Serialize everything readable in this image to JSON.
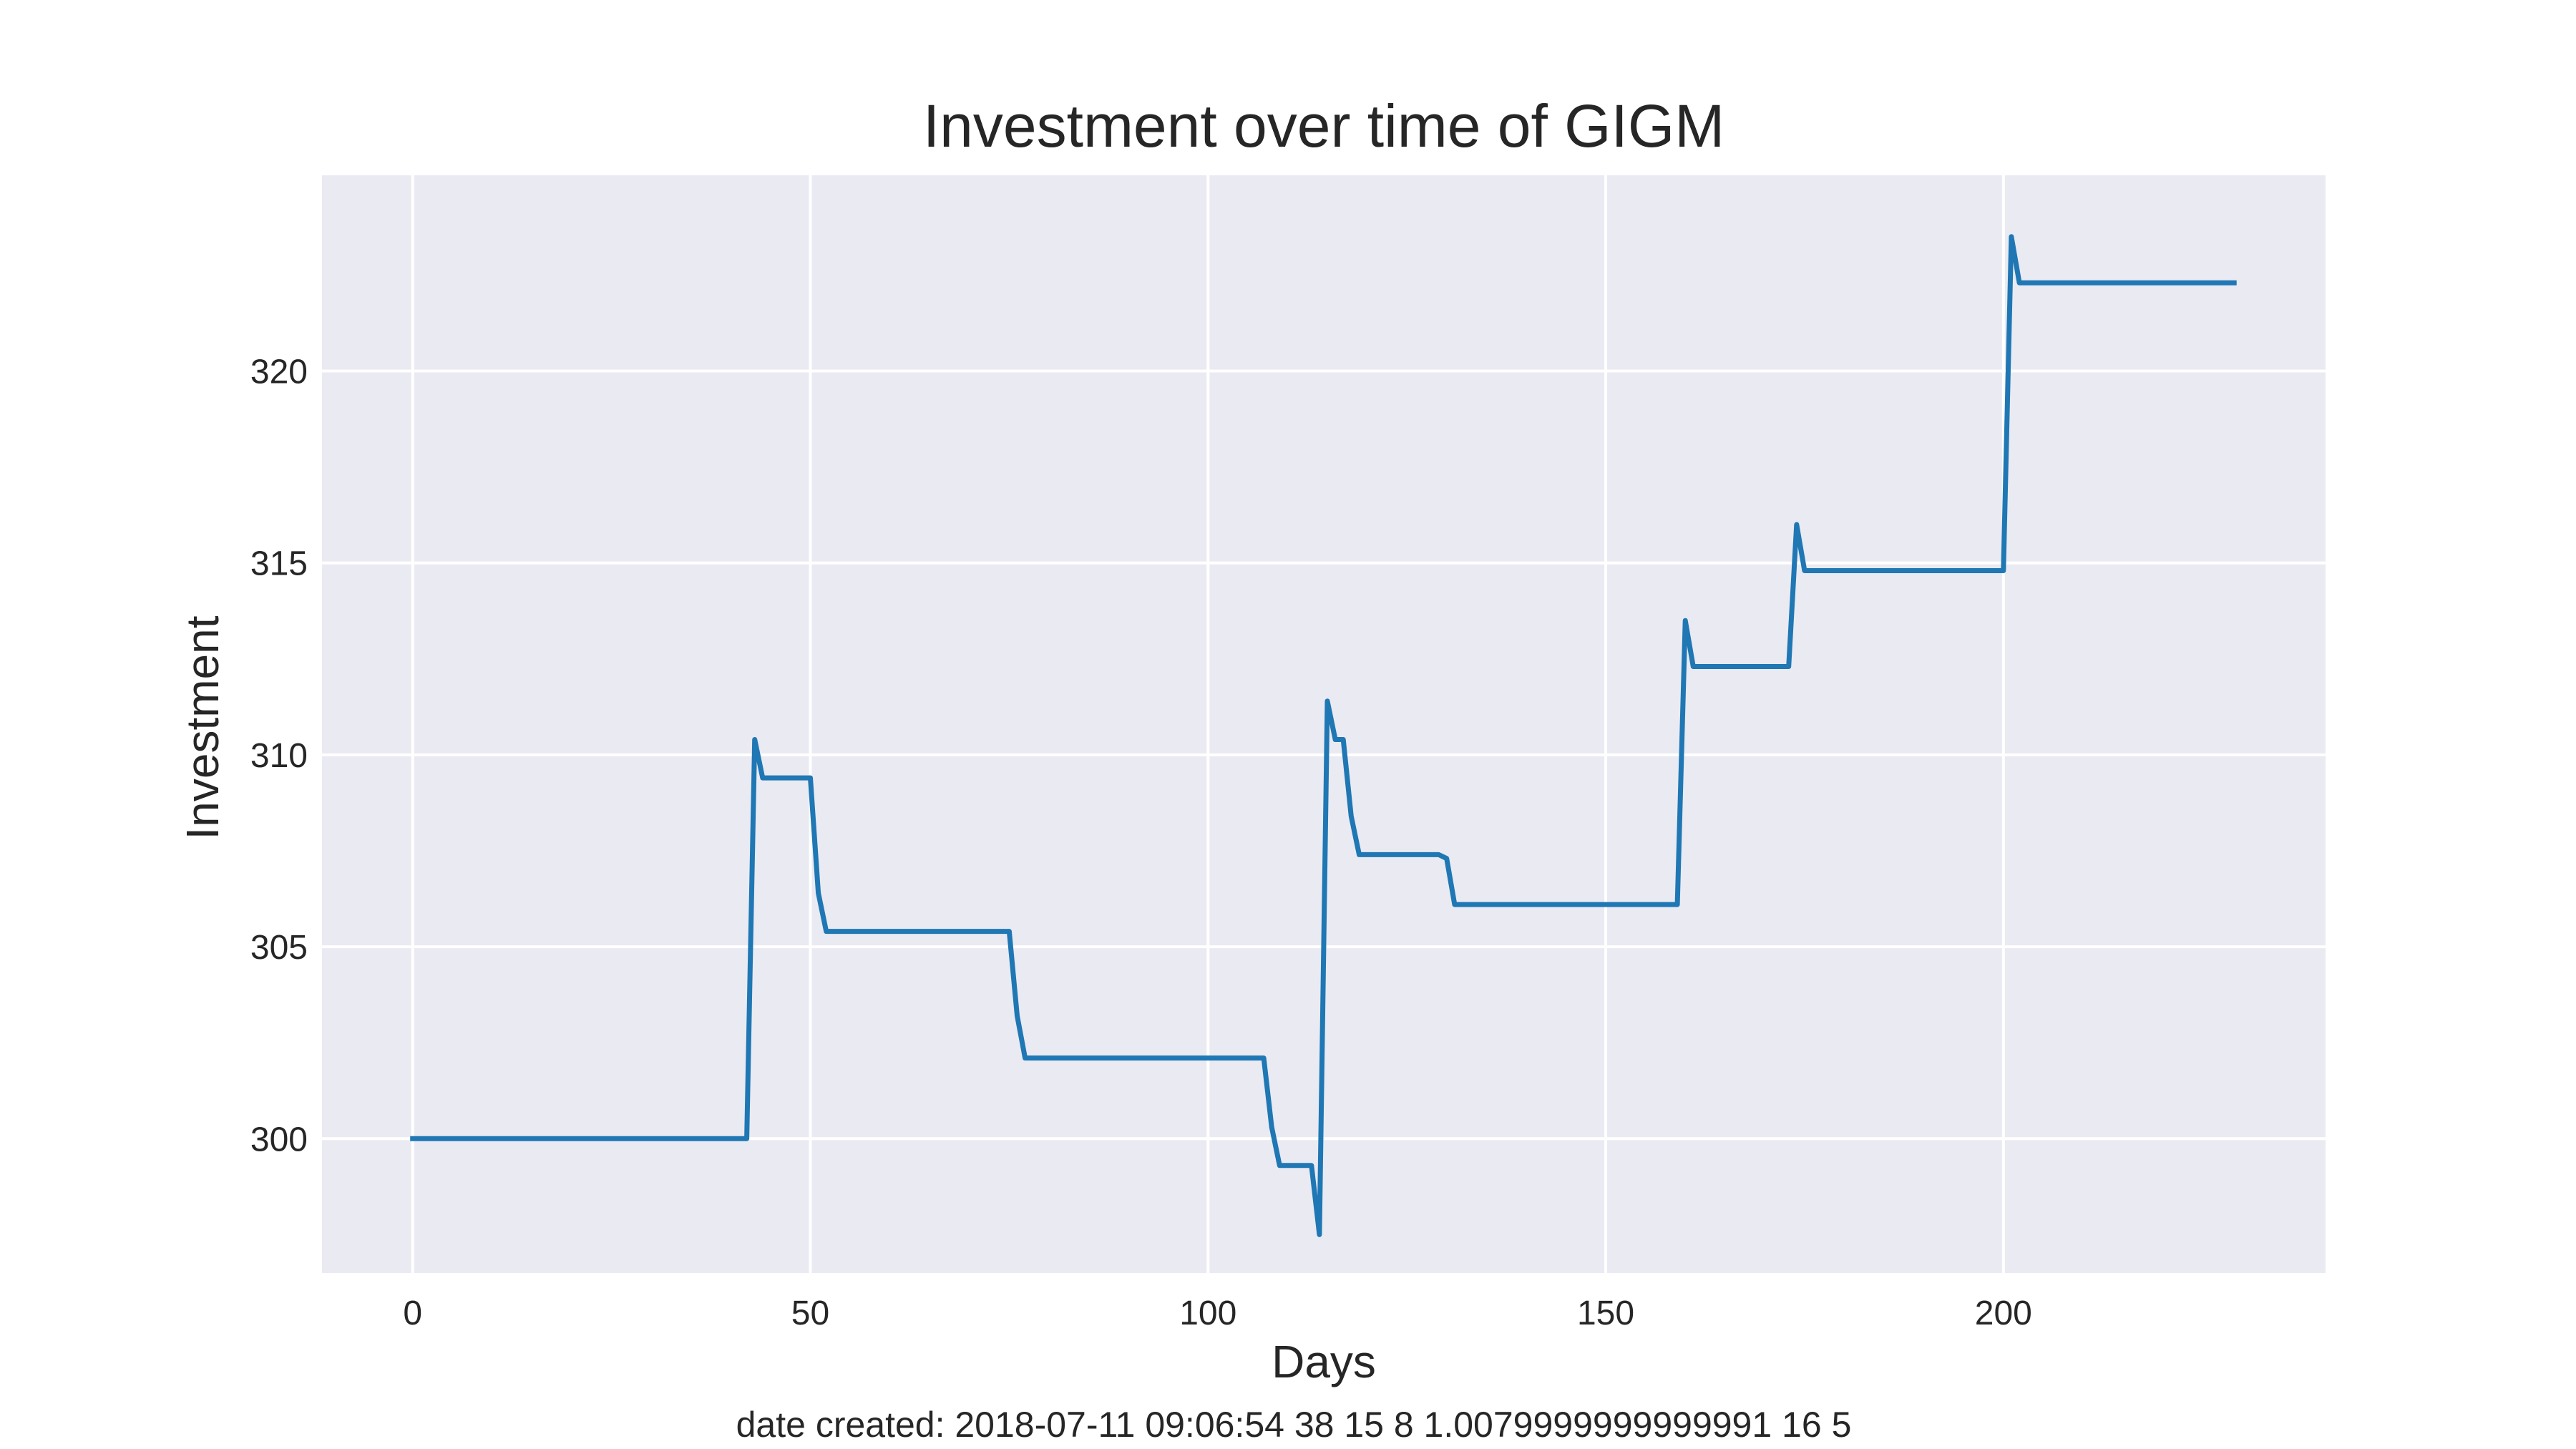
{
  "chart_data": {
    "type": "line",
    "title": "Investment over time of GIGM",
    "xlabel": "Days",
    "ylabel": "Investment",
    "caption": "date created: 2018-07-11 09:06:54 38 15 8 1.0079999999999991 16 5",
    "xlim": [
      -11.4,
      240.5
    ],
    "ylim": [
      296.5,
      325.1
    ],
    "xticks": [
      0,
      50,
      100,
      150,
      200
    ],
    "yticks": [
      300,
      305,
      310,
      315,
      320
    ],
    "grid": true,
    "legend": "none",
    "colors": {
      "line": "#1f77b4",
      "plot_background": "#eaeaf2",
      "grid": "#ffffff",
      "text": "#262626"
    },
    "series": [
      {
        "x": [
          0,
          42,
          43,
          44,
          50,
          51,
          52,
          75,
          76,
          77,
          107,
          108,
          109,
          113,
          114,
          115,
          116,
          117,
          118,
          119,
          129,
          130,
          131,
          159,
          160,
          161,
          173,
          174,
          175,
          200,
          201,
          202,
          229
        ],
        "y": [
          300.0,
          300.0,
          310.4,
          309.4,
          309.4,
          306.4,
          305.4,
          305.4,
          303.2,
          302.1,
          302.1,
          300.3,
          299.3,
          299.3,
          297.5,
          311.4,
          310.4,
          310.4,
          308.4,
          307.4,
          307.4,
          307.3,
          306.1,
          306.1,
          313.5,
          312.3,
          312.3,
          316.0,
          314.8,
          314.8,
          323.5,
          322.3,
          322.3
        ]
      }
    ]
  }
}
